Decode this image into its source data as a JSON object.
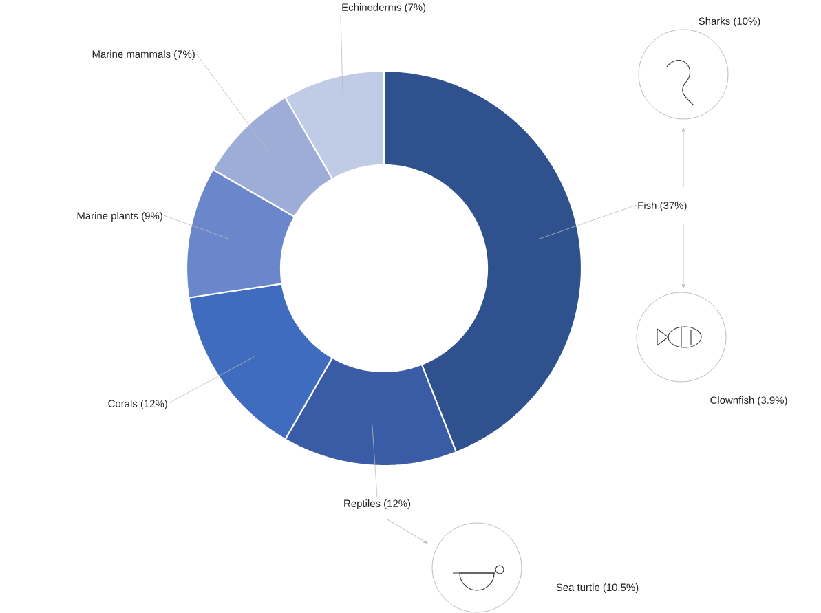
{
  "chart_data": {
    "type": "donut",
    "categories": [
      "Fish (37%)",
      "Reptiles (12%)",
      "Corals (12%)",
      "Marine plants (9%)",
      "Marine mammals (7%)",
      "Echinoderms (7%)"
    ],
    "values": [
      37,
      12,
      12,
      9,
      7,
      7
    ],
    "colors": [
      "#2f528f",
      "#3a5ba5",
      "#3f6cbf",
      "#6b87cc",
      "#9dadd8",
      "#c0cbe6"
    ],
    "annotations": [
      "Sharks (10%)",
      "Clownfish (3.9%)",
      "Sea turtle (10.5%)"
    ]
  }
}
